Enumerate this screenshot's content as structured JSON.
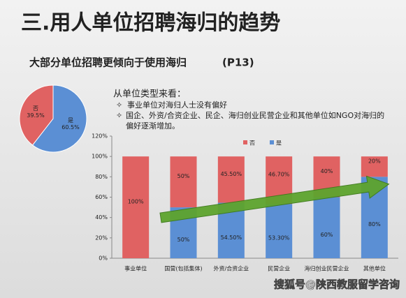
{
  "title": "三.用人单位招聘海归的趋势",
  "subtitle": "大部分单位招聘更倾向于使用海归",
  "page_ref": "(P13)",
  "notes": {
    "heading": "从单位类型来看：",
    "bullets": [
      "事业单位对海归人士没有偏好",
      "国企、外资/合资企业、民企、海归创业民营企业和其他单位如NGO对海归的偏好逐渐增加。"
    ]
  },
  "watermark": "搜狐号@陕西教服留学咨询",
  "chart_data": [
    {
      "type": "pie",
      "categories": [
        "否",
        "是"
      ],
      "values": [
        39.5,
        60.5
      ],
      "value_labels": [
        "39.5%",
        "60.5%"
      ],
      "colors": [
        "#e06262",
        "#5b8fd4"
      ]
    },
    {
      "type": "stacked-bar",
      "categories": [
        "事业单位",
        "国营(包括集体)",
        "外资/合资企业",
        "民营企业",
        "海归创业民营企业",
        "其他单位"
      ],
      "series": [
        {
          "name": "否",
          "color": "#e06262",
          "values": [
            100,
            50,
            45.5,
            46.7,
            40,
            20
          ],
          "value_labels": [
            "100%",
            "50%",
            "45.50%",
            "46.70%",
            "40%",
            "20%"
          ]
        },
        {
          "name": "是",
          "color": "#5b8fd4",
          "values": [
            0,
            50,
            54.5,
            53.3,
            60,
            80
          ],
          "value_labels": [
            null,
            "50%",
            "54.50%",
            "53.30%",
            "60%",
            "80%"
          ]
        }
      ],
      "ylim": [
        0,
        120
      ],
      "yticks": [
        {
          "value": 0,
          "label": "0%"
        },
        {
          "value": 20,
          "label": "20%"
        },
        {
          "value": 40,
          "label": "40%"
        },
        {
          "value": 60,
          "label": "60%"
        },
        {
          "value": 80,
          "label": "80%"
        },
        {
          "value": 100,
          "label": "100%"
        },
        {
          "value": 120,
          "label": "120%"
        }
      ]
    }
  ]
}
